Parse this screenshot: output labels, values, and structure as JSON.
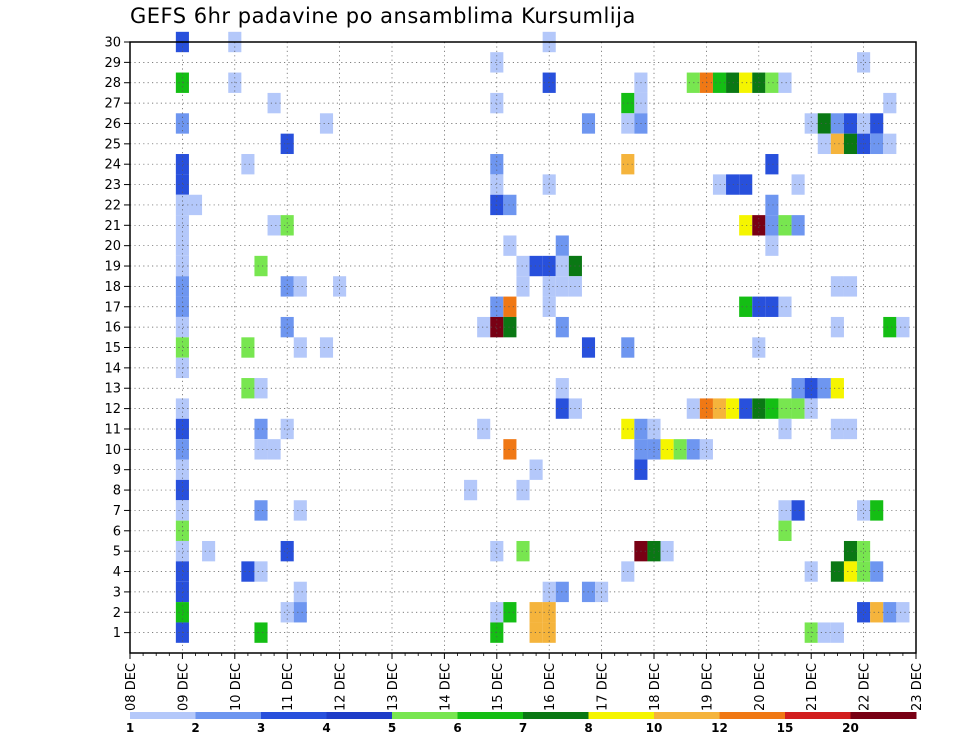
{
  "chart_data": {
    "type": "heatmap",
    "title": "GEFS 6hr padavine po ansamblima Kursumlija",
    "x_tick_labels": [
      "08 DEC",
      "09 DEC",
      "10 DEC",
      "11 DEC",
      "12 DEC",
      "13 DEC",
      "14 DEC",
      "15 DEC",
      "16 DEC",
      "17 DEC",
      "18 DEC",
      "19 DEC",
      "20 DEC",
      "21 DEC",
      "22 DEC",
      "23 DEC"
    ],
    "y_tick_labels": [
      "1",
      "2",
      "3",
      "4",
      "5",
      "6",
      "7",
      "8",
      "9",
      "10",
      "11",
      "12",
      "13",
      "14",
      "15",
      "16",
      "17",
      "18",
      "19",
      "20",
      "21",
      "22",
      "23",
      "24",
      "25",
      "26",
      "27",
      "28",
      "29",
      "30"
    ],
    "xlim_days": [
      0,
      15
    ],
    "ylim": [
      0,
      30
    ],
    "grid": true,
    "legend": {
      "placement": "bottom",
      "colors": [
        "#b4c8fa",
        "#6e96f0",
        "#2850dc",
        "#1e3cc8",
        "#78e650",
        "#14be14",
        "#0a7814",
        "#f5f500",
        "#f5b43c",
        "#f07814",
        "#d21e1e",
        "#780014"
      ],
      "labels": [
        "1",
        "2",
        "3",
        "4",
        "5",
        "6",
        "7",
        "8",
        "10",
        "12",
        "15",
        "20"
      ]
    },
    "cells": [
      {
        "x": "09 DEC 00z",
        "m": 30,
        "c": 3
      },
      {
        "x": "10 DEC 00z",
        "m": 30,
        "c": 1
      },
      {
        "x": "16 DEC 00z",
        "m": 30,
        "c": 1
      },
      {
        "x": "15 DEC 00z",
        "m": 29,
        "c": 1
      },
      {
        "x": "22 DEC 00z",
        "m": 29,
        "c": 1
      },
      {
        "x": "09 DEC 00z",
        "m": 28,
        "c": 6
      },
      {
        "x": "10 DEC 00z",
        "m": 28,
        "c": 1
      },
      {
        "x": "16 DEC 00z",
        "m": 28,
        "c": 3
      },
      {
        "x": "17 DEC 18z",
        "m": 28,
        "c": 1
      },
      {
        "x": "18 DEC 18z",
        "m": 28,
        "c": 5
      },
      {
        "x": "19 DEC 00z",
        "m": 28,
        "c": 10
      },
      {
        "x": "19 DEC 06z",
        "m": 28,
        "c": 6
      },
      {
        "x": "19 DEC 12z",
        "m": 28,
        "c": 7
      },
      {
        "x": "19 DEC 18z",
        "m": 28,
        "c": 8
      },
      {
        "x": "20 DEC 00z",
        "m": 28,
        "c": 7
      },
      {
        "x": "20 DEC 06z",
        "m": 28,
        "c": 5
      },
      {
        "x": "20 DEC 12z",
        "m": 28,
        "c": 1
      },
      {
        "x": "10 DEC 18z",
        "m": 27,
        "c": 1
      },
      {
        "x": "15 DEC 00z",
        "m": 27,
        "c": 1
      },
      {
        "x": "17 DEC 12z",
        "m": 27,
        "c": 6
      },
      {
        "x": "17 DEC 18z",
        "m": 27,
        "c": 1
      },
      {
        "x": "22 DEC 12z",
        "m": 27,
        "c": 1
      },
      {
        "x": "09 DEC 00z",
        "m": 26,
        "c": 2
      },
      {
        "x": "11 DEC 18z",
        "m": 26,
        "c": 1
      },
      {
        "x": "16 DEC 18z",
        "m": 26,
        "c": 2
      },
      {
        "x": "17 DEC 12z",
        "m": 26,
        "c": 1
      },
      {
        "x": "17 DEC 18z",
        "m": 26,
        "c": 2
      },
      {
        "x": "21 DEC 00z",
        "m": 26,
        "c": 1
      },
      {
        "x": "21 DEC 06z",
        "m": 26,
        "c": 7
      },
      {
        "x": "21 DEC 12z",
        "m": 26,
        "c": 2
      },
      {
        "x": "21 DEC 18z",
        "m": 26,
        "c": 3
      },
      {
        "x": "22 DEC 00z",
        "m": 26,
        "c": 1
      },
      {
        "x": "22 DEC 06z",
        "m": 26,
        "c": 3
      },
      {
        "x": "11 DEC 00z",
        "m": 25,
        "c": 3
      },
      {
        "x": "21 DEC 06z",
        "m": 25,
        "c": 1
      },
      {
        "x": "21 DEC 12z",
        "m": 25,
        "c": 9
      },
      {
        "x": "21 DEC 18z",
        "m": 25,
        "c": 7
      },
      {
        "x": "22 DEC 00z",
        "m": 25,
        "c": 3
      },
      {
        "x": "22 DEC 06z",
        "m": 25,
        "c": 2
      },
      {
        "x": "22 DEC 12z",
        "m": 25,
        "c": 1
      },
      {
        "x": "09 DEC 00z",
        "m": 24,
        "c": 3
      },
      {
        "x": "10 DEC 06z",
        "m": 24,
        "c": 1
      },
      {
        "x": "15 DEC 00z",
        "m": 24,
        "c": 2
      },
      {
        "x": "17 DEC 12z",
        "m": 24,
        "c": 9
      },
      {
        "x": "20 DEC 06z",
        "m": 24,
        "c": 3
      },
      {
        "x": "09 DEC 00z",
        "m": 23,
        "c": 3
      },
      {
        "x": "15 DEC 00z",
        "m": 23,
        "c": 1
      },
      {
        "x": "16 DEC 00z",
        "m": 23,
        "c": 1
      },
      {
        "x": "19 DEC 06z",
        "m": 23,
        "c": 1
      },
      {
        "x": "19 DEC 12z",
        "m": 23,
        "c": 3
      },
      {
        "x": "19 DEC 18z",
        "m": 23,
        "c": 3
      },
      {
        "x": "20 DEC 18z",
        "m": 23,
        "c": 1
      },
      {
        "x": "09 DEC 00z",
        "m": 22,
        "c": 1
      },
      {
        "x": "09 DEC 06z",
        "m": 22,
        "c": 1
      },
      {
        "x": "15 DEC 00z",
        "m": 22,
        "c": 3
      },
      {
        "x": "15 DEC 06z",
        "m": 22,
        "c": 2
      },
      {
        "x": "20 DEC 06z",
        "m": 22,
        "c": 2
      },
      {
        "x": "09 DEC 00z",
        "m": 21,
        "c": 1
      },
      {
        "x": "10 DEC 18z",
        "m": 21,
        "c": 1
      },
      {
        "x": "11 DEC 00z",
        "m": 21,
        "c": 5
      },
      {
        "x": "19 DEC 18z",
        "m": 21,
        "c": 8
      },
      {
        "x": "20 DEC 00z",
        "m": 21,
        "c": 12
      },
      {
        "x": "20 DEC 06z",
        "m": 21,
        "c": 2
      },
      {
        "x": "20 DEC 12z",
        "m": 21,
        "c": 5
      },
      {
        "x": "20 DEC 18z",
        "m": 21,
        "c": 2
      },
      {
        "x": "09 DEC 00z",
        "m": 20,
        "c": 1
      },
      {
        "x": "15 DEC 06z",
        "m": 20,
        "c": 1
      },
      {
        "x": "16 DEC 06z",
        "m": 20,
        "c": 2
      },
      {
        "x": "20 DEC 06z",
        "m": 20,
        "c": 1
      },
      {
        "x": "09 DEC 00z",
        "m": 19,
        "c": 1
      },
      {
        "x": "10 DEC 12z",
        "m": 19,
        "c": 5
      },
      {
        "x": "15 DEC 12z",
        "m": 19,
        "c": 1
      },
      {
        "x": "15 DEC 18z",
        "m": 19,
        "c": 3
      },
      {
        "x": "16 DEC 00z",
        "m": 19,
        "c": 3
      },
      {
        "x": "16 DEC 06z",
        "m": 19,
        "c": 1
      },
      {
        "x": "16 DEC 12z",
        "m": 19,
        "c": 7
      },
      {
        "x": "09 DEC 00z",
        "m": 18,
        "c": 2
      },
      {
        "x": "11 DEC 00z",
        "m": 18,
        "c": 2
      },
      {
        "x": "11 DEC 06z",
        "m": 18,
        "c": 1
      },
      {
        "x": "12 DEC 00z",
        "m": 18,
        "c": 1
      },
      {
        "x": "15 DEC 12z",
        "m": 18,
        "c": 1
      },
      {
        "x": "16 DEC 00z",
        "m": 18,
        "c": 1
      },
      {
        "x": "16 DEC 06z",
        "m": 18,
        "c": 1
      },
      {
        "x": "16 DEC 12z",
        "m": 18,
        "c": 1
      },
      {
        "x": "21 DEC 12z",
        "m": 18,
        "c": 1
      },
      {
        "x": "21 DEC 18z",
        "m": 18,
        "c": 1
      },
      {
        "x": "09 DEC 00z",
        "m": 17,
        "c": 2
      },
      {
        "x": "15 DEC 00z",
        "m": 17,
        "c": 2
      },
      {
        "x": "15 DEC 06z",
        "m": 17,
        "c": 10
      },
      {
        "x": "16 DEC 00z",
        "m": 17,
        "c": 1
      },
      {
        "x": "19 DEC 18z",
        "m": 17,
        "c": 6
      },
      {
        "x": "20 DEC 00z",
        "m": 17,
        "c": 3
      },
      {
        "x": "20 DEC 06z",
        "m": 17,
        "c": 3
      },
      {
        "x": "20 DEC 12z",
        "m": 17,
        "c": 1
      },
      {
        "x": "09 DEC 00z",
        "m": 16,
        "c": 1
      },
      {
        "x": "11 DEC 00z",
        "m": 16,
        "c": 2
      },
      {
        "x": "14 DEC 18z",
        "m": 16,
        "c": 1
      },
      {
        "x": "15 DEC 00z",
        "m": 16,
        "c": 12
      },
      {
        "x": "15 DEC 06z",
        "m": 16,
        "c": 7
      },
      {
        "x": "16 DEC 06z",
        "m": 16,
        "c": 2
      },
      {
        "x": "21 DEC 12z",
        "m": 16,
        "c": 1
      },
      {
        "x": "22 DEC 12z",
        "m": 16,
        "c": 6
      },
      {
        "x": "22 DEC 18z",
        "m": 16,
        "c": 1
      },
      {
        "x": "09 DEC 00z",
        "m": 15,
        "c": 5
      },
      {
        "x": "10 DEC 06z",
        "m": 15,
        "c": 5
      },
      {
        "x": "11 DEC 06z",
        "m": 15,
        "c": 1
      },
      {
        "x": "11 DEC 18z",
        "m": 15,
        "c": 1
      },
      {
        "x": "16 DEC 18z",
        "m": 15,
        "c": 3
      },
      {
        "x": "17 DEC 12z",
        "m": 15,
        "c": 2
      },
      {
        "x": "20 DEC 00z",
        "m": 15,
        "c": 1
      },
      {
        "x": "09 DEC 00z",
        "m": 14,
        "c": 1
      },
      {
        "x": "10 DEC 06z",
        "m": 13,
        "c": 5
      },
      {
        "x": "10 DEC 12z",
        "m": 13,
        "c": 1
      },
      {
        "x": "16 DEC 06z",
        "m": 13,
        "c": 1
      },
      {
        "x": "20 DEC 18z",
        "m": 13,
        "c": 2
      },
      {
        "x": "21 DEC 00z",
        "m": 13,
        "c": 3
      },
      {
        "x": "21 DEC 06z",
        "m": 13,
        "c": 2
      },
      {
        "x": "21 DEC 12z",
        "m": 13,
        "c": 8
      },
      {
        "x": "09 DEC 00z",
        "m": 12,
        "c": 1
      },
      {
        "x": "16 DEC 06z",
        "m": 12,
        "c": 3
      },
      {
        "x": "16 DEC 12z",
        "m": 12,
        "c": 1
      },
      {
        "x": "18 DEC 18z",
        "m": 12,
        "c": 1
      },
      {
        "x": "19 DEC 00z",
        "m": 12,
        "c": 10
      },
      {
        "x": "19 DEC 06z",
        "m": 12,
        "c": 9
      },
      {
        "x": "19 DEC 12z",
        "m": 12,
        "c": 8
      },
      {
        "x": "19 DEC 18z",
        "m": 12,
        "c": 3
      },
      {
        "x": "20 DEC 00z",
        "m": 12,
        "c": 7
      },
      {
        "x": "20 DEC 06z",
        "m": 12,
        "c": 6
      },
      {
        "x": "20 DEC 12z",
        "m": 12,
        "c": 5
      },
      {
        "x": "20 DEC 18z",
        "m": 12,
        "c": 5
      },
      {
        "x": "21 DEC 00z",
        "m": 12,
        "c": 1
      },
      {
        "x": "09 DEC 00z",
        "m": 11,
        "c": 3
      },
      {
        "x": "10 DEC 12z",
        "m": 11,
        "c": 2
      },
      {
        "x": "11 DEC 00z",
        "m": 11,
        "c": 1
      },
      {
        "x": "14 DEC 18z",
        "m": 11,
        "c": 1
      },
      {
        "x": "17 DEC 12z",
        "m": 11,
        "c": 8
      },
      {
        "x": "17 DEC 18z",
        "m": 11,
        "c": 2
      },
      {
        "x": "18 DEC 00z",
        "m": 11,
        "c": 1
      },
      {
        "x": "20 DEC 12z",
        "m": 11,
        "c": 1
      },
      {
        "x": "21 DEC 12z",
        "m": 11,
        "c": 1
      },
      {
        "x": "21 DEC 18z",
        "m": 11,
        "c": 1
      },
      {
        "x": "09 DEC 00z",
        "m": 10,
        "c": 2
      },
      {
        "x": "10 DEC 12z",
        "m": 10,
        "c": 1
      },
      {
        "x": "10 DEC 18z",
        "m": 10,
        "c": 1
      },
      {
        "x": "15 DEC 06z",
        "m": 10,
        "c": 10
      },
      {
        "x": "17 DEC 18z",
        "m": 10,
        "c": 2
      },
      {
        "x": "18 DEC 00z",
        "m": 10,
        "c": 2
      },
      {
        "x": "18 DEC 06z",
        "m": 10,
        "c": 8
      },
      {
        "x": "18 DEC 12z",
        "m": 10,
        "c": 5
      },
      {
        "x": "18 DEC 18z",
        "m": 10,
        "c": 2
      },
      {
        "x": "19 DEC 00z",
        "m": 10,
        "c": 1
      },
      {
        "x": "09 DEC 00z",
        "m": 9,
        "c": 1
      },
      {
        "x": "15 DEC 18z",
        "m": 9,
        "c": 1
      },
      {
        "x": "17 DEC 18z",
        "m": 9,
        "c": 3
      },
      {
        "x": "09 DEC 00z",
        "m": 8,
        "c": 3
      },
      {
        "x": "14 DEC 12z",
        "m": 8,
        "c": 1
      },
      {
        "x": "15 DEC 12z",
        "m": 8,
        "c": 1
      },
      {
        "x": "09 DEC 00z",
        "m": 7,
        "c": 1
      },
      {
        "x": "10 DEC 12z",
        "m": 7,
        "c": 2
      },
      {
        "x": "11 DEC 06z",
        "m": 7,
        "c": 1
      },
      {
        "x": "20 DEC 12z",
        "m": 7,
        "c": 1
      },
      {
        "x": "20 DEC 18z",
        "m": 7,
        "c": 3
      },
      {
        "x": "22 DEC 00z",
        "m": 7,
        "c": 1
      },
      {
        "x": "22 DEC 06z",
        "m": 7,
        "c": 6
      },
      {
        "x": "09 DEC 00z",
        "m": 6,
        "c": 5
      },
      {
        "x": "20 DEC 12z",
        "m": 6,
        "c": 5
      },
      {
        "x": "09 DEC 00z",
        "m": 5,
        "c": 1
      },
      {
        "x": "09 DEC 12z",
        "m": 5,
        "c": 1
      },
      {
        "x": "11 DEC 00z",
        "m": 5,
        "c": 3
      },
      {
        "x": "15 DEC 00z",
        "m": 5,
        "c": 1
      },
      {
        "x": "15 DEC 12z",
        "m": 5,
        "c": 5
      },
      {
        "x": "17 DEC 18z",
        "m": 5,
        "c": 12
      },
      {
        "x": "18 DEC 00z",
        "m": 5,
        "c": 7
      },
      {
        "x": "18 DEC 06z",
        "m": 5,
        "c": 1
      },
      {
        "x": "21 DEC 18z",
        "m": 5,
        "c": 7
      },
      {
        "x": "22 DEC 00z",
        "m": 5,
        "c": 5
      },
      {
        "x": "09 DEC 00z",
        "m": 4,
        "c": 3
      },
      {
        "x": "10 DEC 06z",
        "m": 4,
        "c": 3
      },
      {
        "x": "10 DEC 12z",
        "m": 4,
        "c": 1
      },
      {
        "x": "17 DEC 12z",
        "m": 4,
        "c": 1
      },
      {
        "x": "21 DEC 00z",
        "m": 4,
        "c": 1
      },
      {
        "x": "21 DEC 12z",
        "m": 4,
        "c": 7
      },
      {
        "x": "21 DEC 18z",
        "m": 4,
        "c": 8
      },
      {
        "x": "22 DEC 00z",
        "m": 4,
        "c": 5
      },
      {
        "x": "22 DEC 06z",
        "m": 4,
        "c": 2
      },
      {
        "x": "09 DEC 00z",
        "m": 3,
        "c": 3
      },
      {
        "x": "11 DEC 06z",
        "m": 3,
        "c": 1
      },
      {
        "x": "16 DEC 00z",
        "m": 3,
        "c": 1
      },
      {
        "x": "16 DEC 06z",
        "m": 3,
        "c": 2
      },
      {
        "x": "16 DEC 18z",
        "m": 3,
        "c": 2
      },
      {
        "x": "17 DEC 00z",
        "m": 3,
        "c": 1
      },
      {
        "x": "09 DEC 00z",
        "m": 2,
        "c": 6
      },
      {
        "x": "11 DEC 00z",
        "m": 2,
        "c": 1
      },
      {
        "x": "11 DEC 06z",
        "m": 2,
        "c": 2
      },
      {
        "x": "15 DEC 00z",
        "m": 2,
        "c": 1
      },
      {
        "x": "15 DEC 06z",
        "m": 2,
        "c": 6
      },
      {
        "x": "15 DEC 18z",
        "m": 2,
        "c": 9
      },
      {
        "x": "16 DEC 00z",
        "m": 2,
        "c": 9
      },
      {
        "x": "22 DEC 00z",
        "m": 2,
        "c": 3
      },
      {
        "x": "22 DEC 06z",
        "m": 2,
        "c": 9
      },
      {
        "x": "22 DEC 12z",
        "m": 2,
        "c": 2
      },
      {
        "x": "22 DEC 18z",
        "m": 2,
        "c": 1
      },
      {
        "x": "09 DEC 00z",
        "m": 1,
        "c": 3
      },
      {
        "x": "10 DEC 12z",
        "m": 1,
        "c": 6
      },
      {
        "x": "15 DEC 00z",
        "m": 1,
        "c": 6
      },
      {
        "x": "15 DEC 18z",
        "m": 1,
        "c": 9
      },
      {
        "x": "16 DEC 00z",
        "m": 1,
        "c": 9
      },
      {
        "x": "21 DEC 00z",
        "m": 1,
        "c": 5
      },
      {
        "x": "21 DEC 06z",
        "m": 1,
        "c": 1
      },
      {
        "x": "21 DEC 12z",
        "m": 1,
        "c": 1
      }
    ]
  }
}
